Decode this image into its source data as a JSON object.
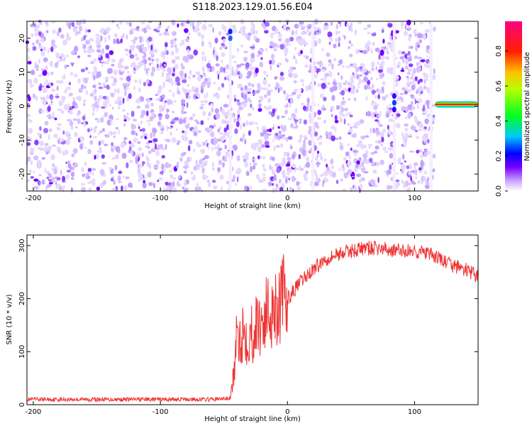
{
  "title": "S118.2023.129.01.56.E04",
  "chart_data": [
    {
      "type": "heatmap",
      "xlabel": "Height of straight line (km)",
      "ylabel": "Frequency (Hz)",
      "xlim": [
        -205,
        150
      ],
      "ylim": [
        -25,
        25
      ],
      "xticks": [
        -200,
        -100,
        0,
        100
      ],
      "yticks": [
        -20,
        -10,
        0,
        10,
        20
      ],
      "colorbar": {
        "label": "Normalized spectral amplitude",
        "range": [
          0.0,
          0.97
        ],
        "ticks": [
          0.0,
          0.2,
          0.4,
          0.6,
          0.8
        ],
        "colors": [
          "#ffffff",
          "#c6a6ff",
          "#7a00ff",
          "#0000ff",
          "#00c8ff",
          "#00ff20",
          "#f0ff00",
          "#ff2000",
          "#ff0080"
        ]
      },
      "features": {
        "noise_region_km": [
          -205,
          116
        ],
        "gap_lines_km": [
          -45,
          20,
          84,
          113
        ],
        "signal_region_km": [
          116,
          150
        ],
        "signal_frequency_hz": 0.5
      }
    },
    {
      "type": "line",
      "xlabel": "Height of straight line (km)",
      "ylabel": "SNR (10 * v/v)",
      "xlim": [
        -205,
        150
      ],
      "ylim": [
        0,
        320
      ],
      "xticks": [
        -200,
        -100,
        0,
        100
      ],
      "yticks": [
        0,
        100,
        200,
        300
      ],
      "color": "#ee3333",
      "x": [
        -205,
        -180,
        -150,
        -120,
        -90,
        -60,
        -45,
        -42,
        -40,
        -35,
        -30,
        -20,
        -10,
        0,
        10,
        20,
        30,
        40,
        50,
        60,
        70,
        80,
        90,
        100,
        110,
        120,
        130,
        140,
        150
      ],
      "y": [
        10,
        10,
        10,
        10,
        10,
        10,
        12,
        60,
        120,
        140,
        130,
        160,
        190,
        200,
        230,
        255,
        275,
        285,
        290,
        295,
        295,
        292,
        290,
        290,
        285,
        275,
        262,
        255,
        240
      ]
    }
  ]
}
